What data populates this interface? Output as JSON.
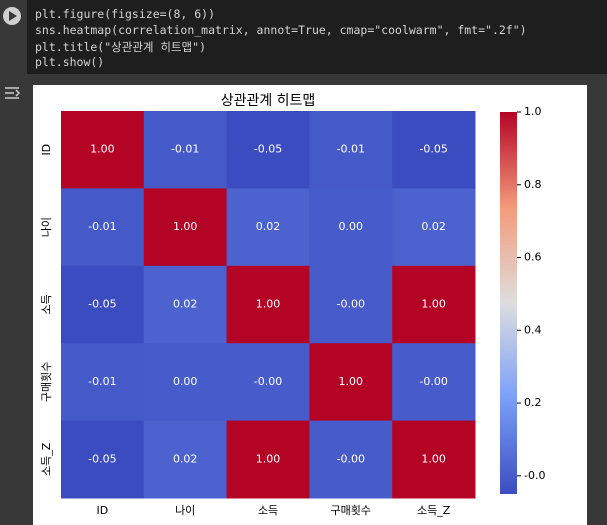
{
  "cell": {
    "code": [
      "plt.figure(figsize=(8, 6))",
      "sns.heatmap(correlation_matrix, annot=True, cmap=\"coolwarm\", fmt=\".2f\")",
      "plt.title(\"상관관계 히트맵\")",
      "plt.show()"
    ]
  },
  "chart_data": {
    "type": "heatmap",
    "title": "상관관계 히트맵",
    "categories": [
      "ID",
      "나이",
      "소득",
      "구매횟수",
      "소득_Z"
    ],
    "values": [
      [
        1,
        -0.01,
        -0.05,
        -0.01,
        -0.05
      ],
      [
        -0.01,
        1,
        0.02,
        0,
        0.02
      ],
      [
        -0.05,
        0.02,
        1,
        -0.001,
        1
      ],
      [
        -0.01,
        0,
        -0.001,
        1,
        -0.001
      ],
      [
        -0.05,
        0.02,
        1,
        -0.001,
        1
      ]
    ],
    "value_labels": [
      [
        "1.00",
        "-0.01",
        "-0.05",
        "-0.01",
        "-0.05"
      ],
      [
        "-0.01",
        "1.00",
        "0.02",
        "0.00",
        "0.02"
      ],
      [
        "-0.05",
        "0.02",
        "1.00",
        "-0.00",
        "1.00"
      ],
      [
        "-0.01",
        "0.00",
        "-0.00",
        "1.00",
        "-0.00"
      ],
      [
        "-0.05",
        "0.02",
        "1.00",
        "-0.00",
        "1.00"
      ]
    ],
    "colormap": "coolwarm",
    "clim": [
      -0.05,
      1.0
    ],
    "cticks": [
      {
        "value": 0,
        "label": "-0.0"
      },
      0.2,
      0.4,
      0.6,
      0.8,
      {
        "value": 1,
        "label": "1.0"
      }
    ]
  }
}
